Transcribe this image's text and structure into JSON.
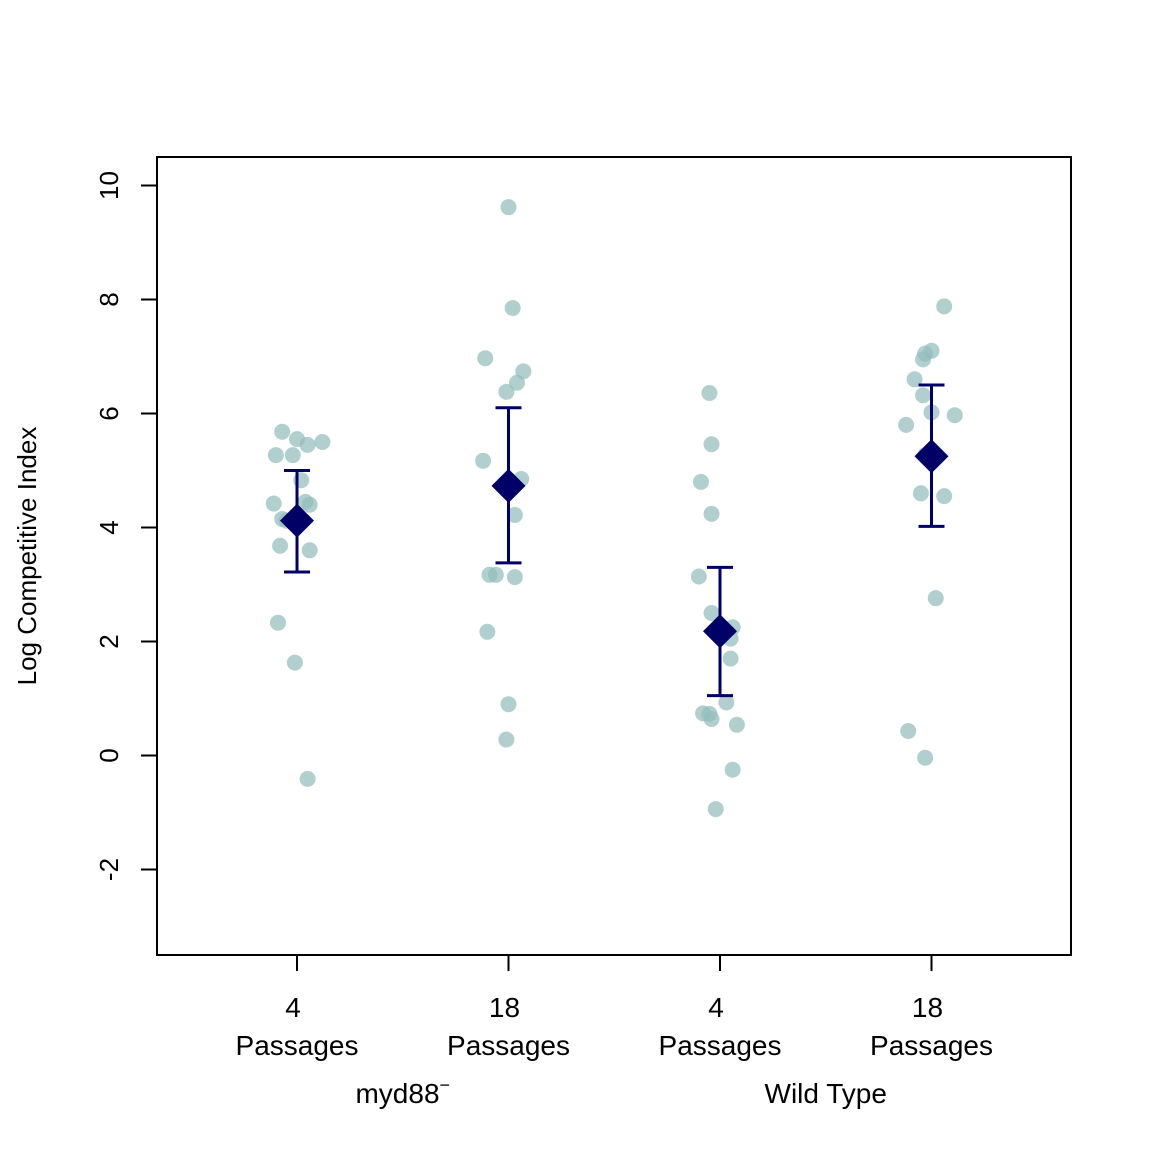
{
  "chart_data": {
    "type": "scatter",
    "title": "",
    "ylabel": "Log Competitive Index",
    "ylim": [
      -3.5,
      10.5
    ],
    "yticks": [
      -2,
      0,
      2,
      4,
      6,
      8,
      10
    ],
    "ytick_labels": [
      "-2",
      "0",
      "2",
      "4",
      "6",
      "8",
      "10"
    ],
    "categories": [
      {
        "number": "4",
        "label": "Passages"
      },
      {
        "number": "18",
        "label": "Passages"
      },
      {
        "number": "4",
        "label": "Passages"
      },
      {
        "number": "18",
        "label": "Passages"
      }
    ],
    "groups": [
      {
        "name": "myd88",
        "superscript": "−",
        "categories": [
          0,
          1
        ]
      },
      {
        "name": "Wild Type",
        "superscript": "",
        "categories": [
          2,
          3
        ]
      }
    ],
    "series": [
      {
        "category": 0,
        "points": [
          {
            "dx": -0.07,
            "y": 5.68
          },
          {
            "dx": 0.0,
            "y": 5.55
          },
          {
            "dx": 0.05,
            "y": 5.45
          },
          {
            "dx": 0.12,
            "y": 5.5
          },
          {
            "dx": -0.1,
            "y": 5.27
          },
          {
            "dx": -0.02,
            "y": 5.27
          },
          {
            "dx": 0.02,
            "y": 4.83
          },
          {
            "dx": -0.11,
            "y": 4.42
          },
          {
            "dx": 0.04,
            "y": 4.45
          },
          {
            "dx": 0.06,
            "y": 4.4
          },
          {
            "dx": -0.07,
            "y": 4.15
          },
          {
            "dx": -0.05,
            "y": 4.12
          },
          {
            "dx": -0.08,
            "y": 3.68
          },
          {
            "dx": 0.06,
            "y": 3.6
          },
          {
            "dx": -0.09,
            "y": 2.33
          },
          {
            "dx": -0.01,
            "y": 1.63
          },
          {
            "dx": 0.05,
            "y": -0.41
          }
        ],
        "mean": 4.12,
        "ci_low": 3.22,
        "ci_high": 5.0
      },
      {
        "category": 1,
        "points": [
          {
            "dx": 0.0,
            "y": 9.62
          },
          {
            "dx": 0.02,
            "y": 7.85
          },
          {
            "dx": -0.11,
            "y": 6.97
          },
          {
            "dx": 0.07,
            "y": 6.74
          },
          {
            "dx": 0.04,
            "y": 6.54
          },
          {
            "dx": -0.01,
            "y": 6.38
          },
          {
            "dx": -0.12,
            "y": 5.17
          },
          {
            "dx": 0.06,
            "y": 4.85
          },
          {
            "dx": 0.03,
            "y": 4.22
          },
          {
            "dx": -0.09,
            "y": 3.17
          },
          {
            "dx": -0.06,
            "y": 3.17
          },
          {
            "dx": 0.03,
            "y": 3.13
          },
          {
            "dx": -0.1,
            "y": 2.17
          },
          {
            "dx": 0.0,
            "y": 0.9
          },
          {
            "dx": -0.01,
            "y": 0.28
          }
        ],
        "mean": 4.73,
        "ci_low": 3.38,
        "ci_high": 6.1
      },
      {
        "category": 2,
        "points": [
          {
            "dx": -0.05,
            "y": 6.36
          },
          {
            "dx": -0.04,
            "y": 5.46
          },
          {
            "dx": -0.09,
            "y": 4.8
          },
          {
            "dx": -0.04,
            "y": 4.24
          },
          {
            "dx": -0.1,
            "y": 3.14
          },
          {
            "dx": -0.04,
            "y": 2.5
          },
          {
            "dx": 0.06,
            "y": 2.25
          },
          {
            "dx": 0.05,
            "y": 2.05
          },
          {
            "dx": 0.05,
            "y": 1.7
          },
          {
            "dx": -0.08,
            "y": 0.74
          },
          {
            "dx": -0.05,
            "y": 0.73
          },
          {
            "dx": 0.03,
            "y": 0.93
          },
          {
            "dx": -0.04,
            "y": 0.64
          },
          {
            "dx": 0.08,
            "y": 0.54
          },
          {
            "dx": 0.06,
            "y": -0.25
          },
          {
            "dx": -0.02,
            "y": -0.94
          }
        ],
        "mean": 2.18,
        "ci_low": 1.05,
        "ci_high": 3.3
      },
      {
        "category": 3,
        "points": [
          {
            "dx": 0.06,
            "y": 7.88
          },
          {
            "dx": 0.0,
            "y": 7.1
          },
          {
            "dx": -0.03,
            "y": 7.05
          },
          {
            "dx": -0.04,
            "y": 6.95
          },
          {
            "dx": -0.08,
            "y": 6.6
          },
          {
            "dx": -0.04,
            "y": 6.32
          },
          {
            "dx": 0.0,
            "y": 6.02
          },
          {
            "dx": 0.11,
            "y": 5.97
          },
          {
            "dx": -0.12,
            "y": 5.8
          },
          {
            "dx": -0.03,
            "y": 5.27
          },
          {
            "dx": -0.05,
            "y": 4.6
          },
          {
            "dx": 0.06,
            "y": 4.55
          },
          {
            "dx": 0.02,
            "y": 2.76
          },
          {
            "dx": -0.11,
            "y": 0.43
          },
          {
            "dx": -0.03,
            "y": -0.04
          }
        ],
        "mean": 5.25,
        "ci_low": 4.02,
        "ci_high": 6.5
      }
    ],
    "colors": {
      "points": "#93bcbc",
      "mean_marker": "#000066",
      "error_bar": "#000066",
      "frame": "#000000"
    },
    "grid": false,
    "legend": "none"
  }
}
